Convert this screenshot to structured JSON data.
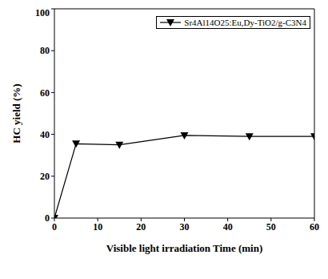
{
  "chart_data": {
    "type": "line",
    "x_label": "Visible light irradiation Time (min)",
    "y_label": "HC yield (%)",
    "x": [
      0,
      5,
      15,
      30,
      45,
      60
    ],
    "series": [
      {
        "name": "Sr4Al14O25:Eu,Dy-TiO2/g-C3N4",
        "color": "#000000",
        "marker": "triangle_down",
        "line_style": "solid",
        "values": [
          0,
          35.5,
          35,
          39.5,
          39,
          39
        ]
      }
    ],
    "xlim": [
      0,
      60
    ],
    "xticks": [
      0,
      10,
      20,
      30,
      40,
      50,
      60
    ],
    "ylim": [
      0,
      100
    ],
    "yticks": [
      0,
      20,
      40,
      60,
      80,
      100
    ],
    "grid": false,
    "legend": "upper right"
  }
}
